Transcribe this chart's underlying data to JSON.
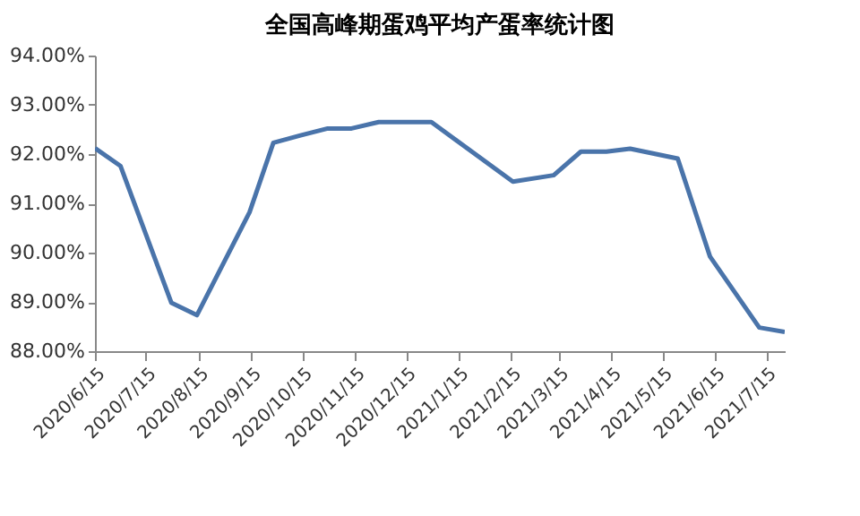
{
  "chart_data": {
    "type": "line",
    "title": "全国高峰期蛋鸡平均产蛋率统计图",
    "x": [
      "2020-06-15",
      "2020-06-30",
      "2020-07-30",
      "2020-08-14",
      "2020-09-14",
      "2020-09-28",
      "2020-10-14",
      "2020-10-30",
      "2020-11-13",
      "2020-11-29",
      "2020-12-30",
      "2021-02-16",
      "2021-03-12",
      "2021-03-28",
      "2021-04-12",
      "2021-04-26",
      "2021-05-24",
      "2021-06-12",
      "2021-07-11",
      "2021-07-26"
    ],
    "series": [
      {
        "color": "#4a74aa",
        "values": [
          92.12,
          91.76,
          88.98,
          88.73,
          90.82,
          92.23,
          92.38,
          92.52,
          92.52,
          92.65,
          92.65,
          91.44,
          91.57,
          92.05,
          92.05,
          92.11,
          91.91,
          89.92,
          88.48,
          88.39
        ]
      }
    ],
    "xlim": [
      "2020-06-15",
      "2021-07-26"
    ],
    "xticks": [
      {
        "value": "2020-06-15",
        "label": "2020/6/15"
      },
      {
        "value": "2020-07-15",
        "label": "2020/7/15"
      },
      {
        "value": "2020-08-15",
        "label": "2020/8/15"
      },
      {
        "value": "2020-09-15",
        "label": "2020/9/15"
      },
      {
        "value": "2020-10-15",
        "label": "2020/10/15"
      },
      {
        "value": "2020-11-15",
        "label": "2020/11/15"
      },
      {
        "value": "2020-12-15",
        "label": "2020/12/15"
      },
      {
        "value": "2021-01-15",
        "label": "2021/1/15"
      },
      {
        "value": "2021-02-15",
        "label": "2021/2/15"
      },
      {
        "value": "2021-03-15",
        "label": "2021/3/15"
      },
      {
        "value": "2021-04-15",
        "label": "2021/4/15"
      },
      {
        "value": "2021-05-15",
        "label": "2021/5/15"
      },
      {
        "value": "2021-06-15",
        "label": "2021/6/15"
      },
      {
        "value": "2021-07-15",
        "label": "2021/7/15"
      }
    ],
    "ylim": [
      88,
      94
    ],
    "yticks": [
      {
        "value": 88,
        "label": "88.00%"
      },
      {
        "value": 89,
        "label": "89.00%"
      },
      {
        "value": 90,
        "label": "90.00%"
      },
      {
        "value": 91,
        "label": "91.00%"
      },
      {
        "value": 92,
        "label": "92.00%"
      },
      {
        "value": 93,
        "label": "93.00%"
      },
      {
        "value": 94,
        "label": "94.00%"
      }
    ],
    "grid": false,
    "marker": "none",
    "line_style": "solid"
  }
}
